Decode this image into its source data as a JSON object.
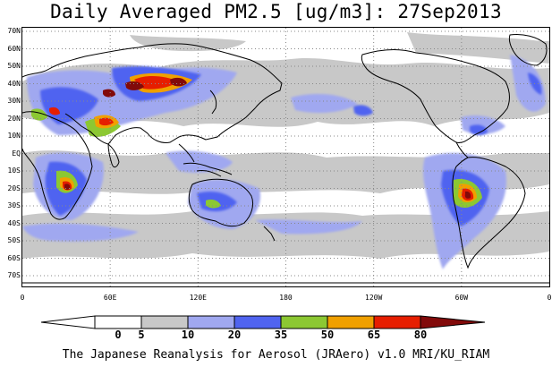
{
  "title": "Daily Averaged PM2.5 [ug/m3]: 27Sep2013",
  "credit": "The Japanese Reanalysis for Aerosol (JRAero) v1.0 MRI/KU_RIAM",
  "lat_labels": [
    "70N",
    "60N",
    "50N",
    "40N",
    "30N",
    "20N",
    "10N",
    "EQ",
    "10S",
    "20S",
    "30S",
    "40S",
    "50S",
    "60S",
    "70S"
  ],
  "lon_labels": [
    "0",
    "60E",
    "120E",
    "180",
    "120W",
    "60W",
    "0"
  ],
  "colorbar": {
    "values": [
      "0",
      "5",
      "10",
      "20",
      "35",
      "50",
      "65",
      "80"
    ],
    "colors": [
      "#ffffff",
      "#c8c8c8",
      "#a0a8f0",
      "#5064f0",
      "#8cc832",
      "#f0a000",
      "#e61e00",
      "#820a0a"
    ]
  },
  "colors": {
    "coast": "#000000",
    "grid": "#888888"
  }
}
